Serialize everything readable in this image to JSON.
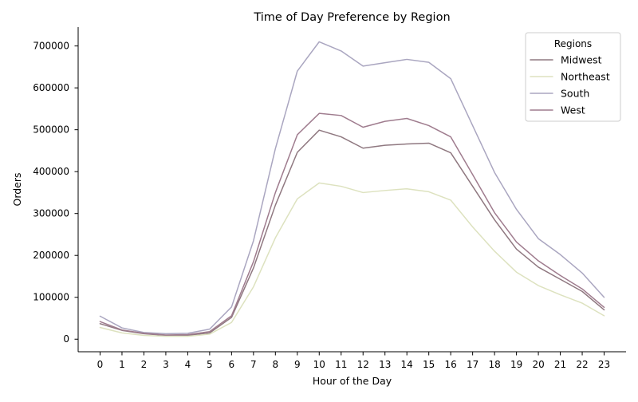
{
  "chart_data": {
    "type": "line",
    "title": "Time of Day Preference by Region",
    "xlabel": "Hour of the Day",
    "ylabel": "Orders",
    "x": [
      0,
      1,
      2,
      3,
      4,
      5,
      6,
      7,
      8,
      9,
      10,
      11,
      12,
      13,
      14,
      15,
      16,
      17,
      18,
      19,
      20,
      21,
      22,
      23
    ],
    "xlim": [
      -1,
      24
    ],
    "ylim": [
      -30000,
      745000
    ],
    "yticks": [
      0,
      100000,
      200000,
      300000,
      400000,
      500000,
      600000,
      700000
    ],
    "grid": false,
    "legend": {
      "title": "Regions",
      "placement": "top-right"
    },
    "series": [
      {
        "name": "Midwest",
        "color": "#8f7880",
        "values": [
          37000,
          21000,
          13000,
          9000,
          9000,
          15000,
          52000,
          170000,
          320000,
          446000,
          499000,
          483000,
          456000,
          463000,
          466000,
          468000,
          445000,
          365000,
          285000,
          215000,
          172000,
          143000,
          114000,
          70000
        ]
      },
      {
        "name": "Northeast",
        "color": "#dde2bf",
        "values": [
          28000,
          15000,
          9000,
          7000,
          7000,
          12000,
          40000,
          125000,
          242000,
          335000,
          373000,
          365000,
          350000,
          355000,
          359000,
          352000,
          332000,
          268000,
          210000,
          160000,
          128000,
          106000,
          86000,
          56000
        ]
      },
      {
        "name": "South",
        "color": "#aaa6c0",
        "values": [
          55000,
          27000,
          16000,
          13000,
          14000,
          24000,
          77000,
          235000,
          455000,
          640000,
          710000,
          688000,
          652000,
          660000,
          668000,
          661000,
          622000,
          510000,
          398000,
          310000,
          240000,
          202000,
          158000,
          100000
        ]
      },
      {
        "name": "West",
        "color": "#9f7c8e",
        "values": [
          42000,
          22000,
          14000,
          10000,
          11000,
          18000,
          56000,
          185000,
          350000,
          488000,
          539000,
          534000,
          506000,
          520000,
          527000,
          510000,
          483000,
          393000,
          302000,
          232000,
          187000,
          152000,
          120000,
          76000
        ]
      }
    ]
  }
}
